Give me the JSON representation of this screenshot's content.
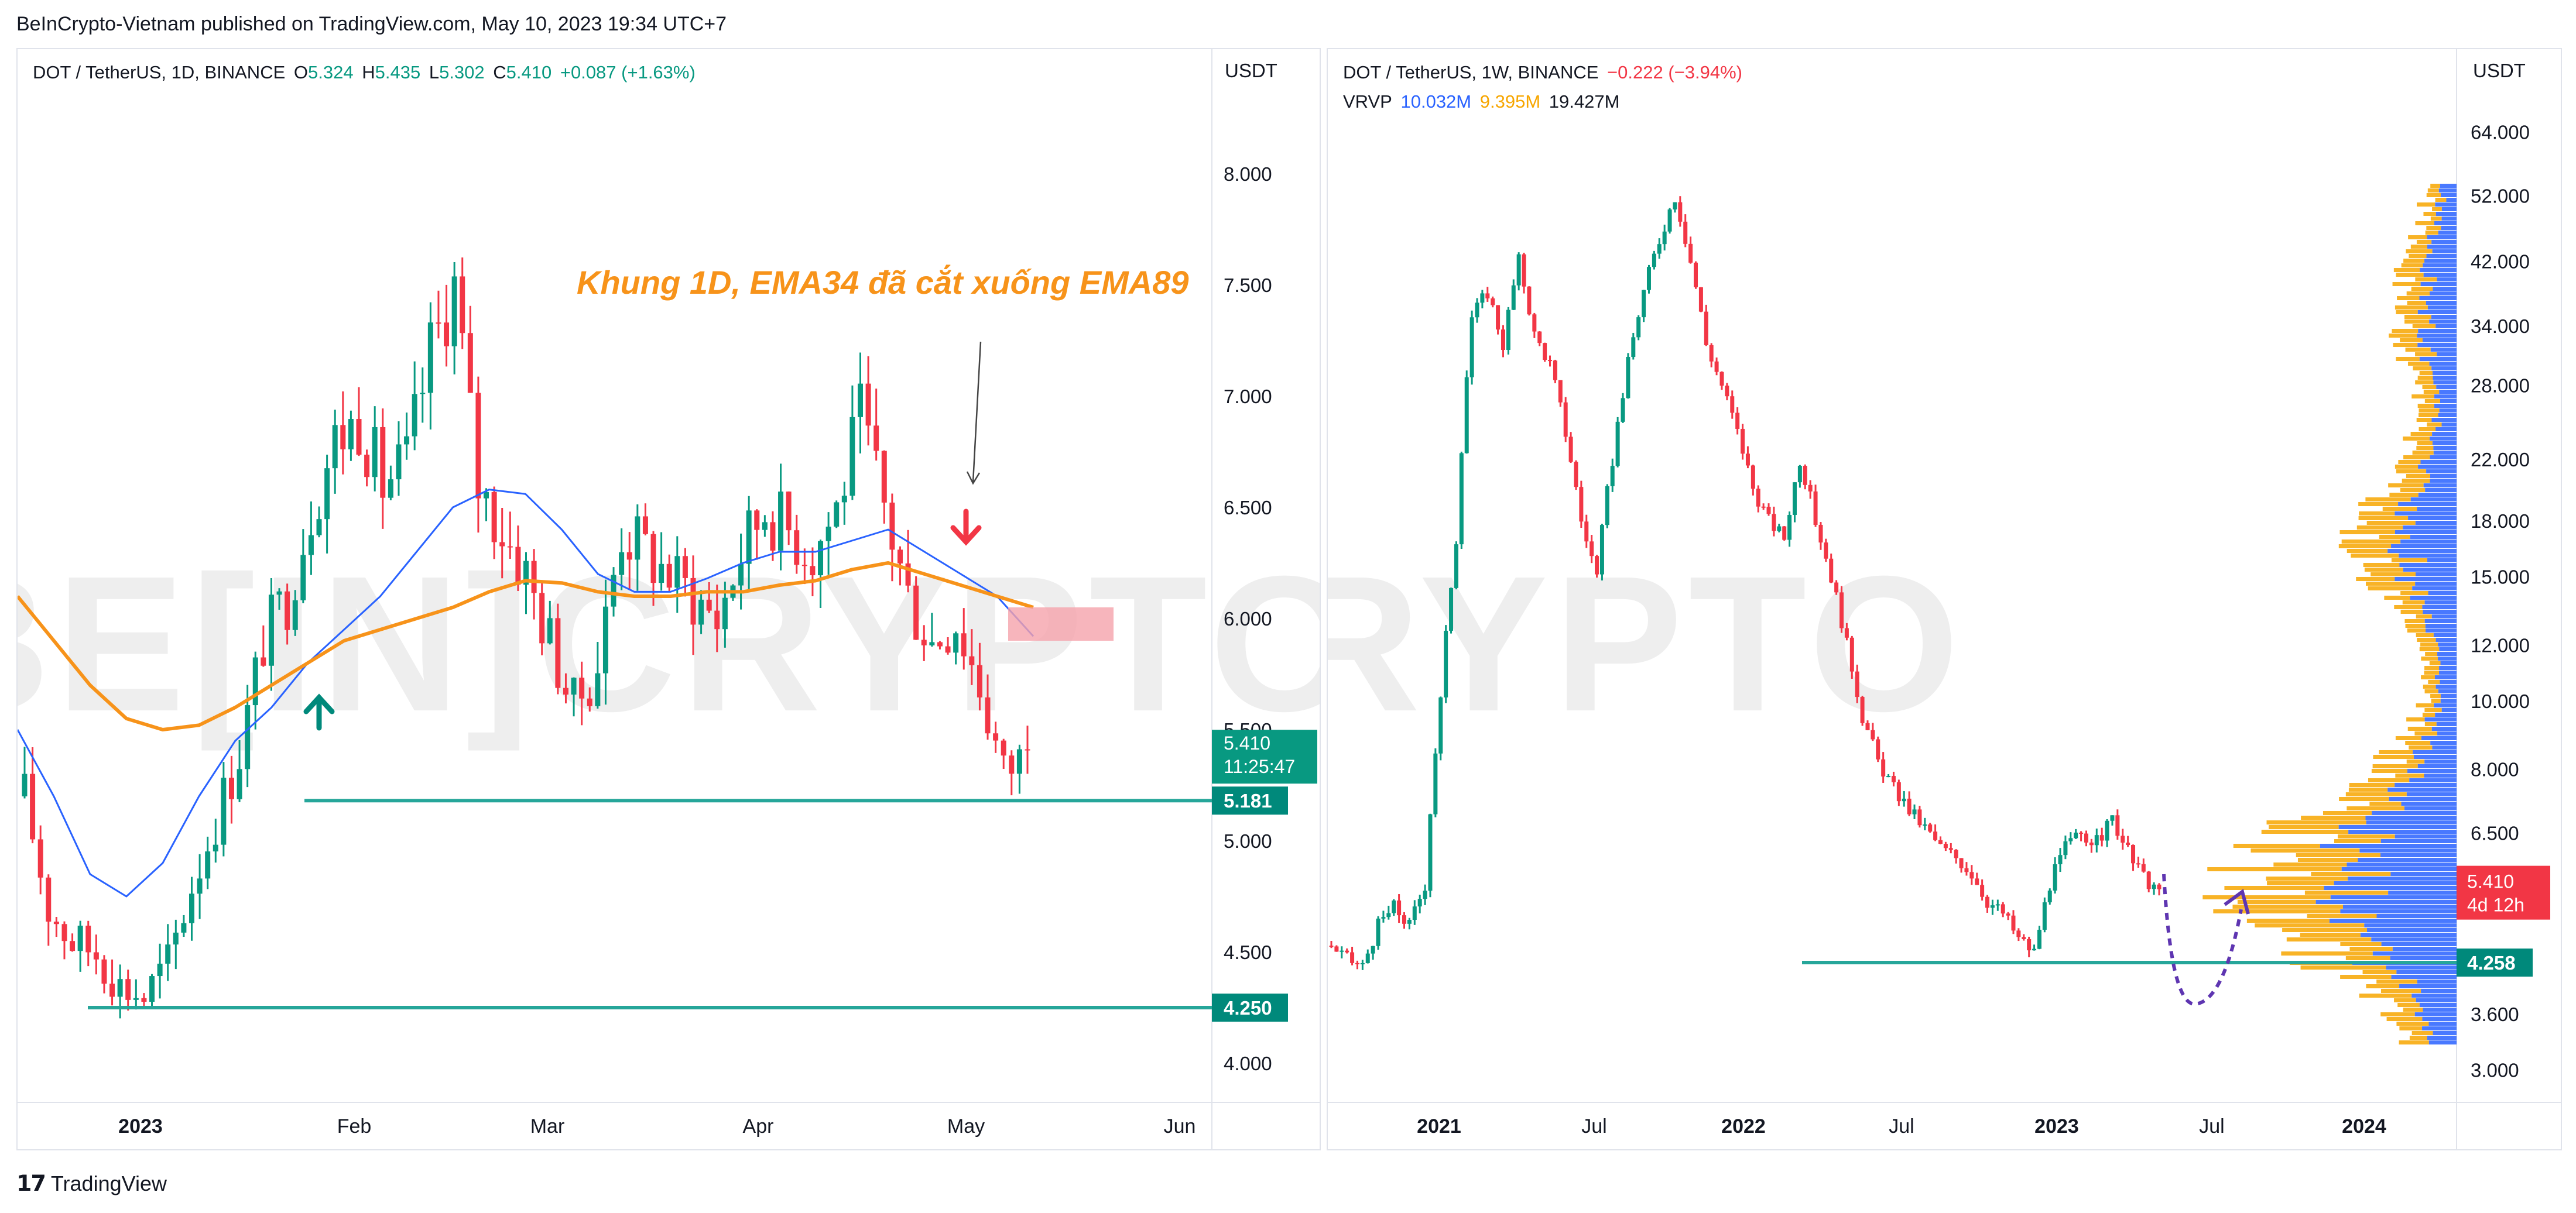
{
  "header": {
    "published_by": "BeInCrypto-Vietnam published on TradingView.com, May 10, 2023 19:34 UTC+7"
  },
  "footer": {
    "brand": "TradingView"
  },
  "watermark": "BE[IN]CRYPTO",
  "colors": {
    "up": "#089981",
    "down": "#f23645",
    "ema34": "#2962ff",
    "ema89": "#f7931a",
    "support": "#26a69a",
    "annotation": "#f7931a",
    "vrvp_up": "#2962ff",
    "vrvp_down": "#f7a600"
  },
  "left_panel": {
    "legend": {
      "symbol": "DOT / TetherUS, 1D, BINANCE",
      "o_label": "O",
      "o": "5.324",
      "h_label": "H",
      "h": "5.435",
      "l_label": "L",
      "l": "5.302",
      "c_label": "C",
      "c": "5.410",
      "change": "+0.087 (+1.63%)"
    },
    "unit": "USDT",
    "annotation": "Khung 1D, EMA34 đã cắt xuống EMA89",
    "price_tag": {
      "price": "5.410",
      "countdown": "11:25:47"
    },
    "support_tags": [
      "5.181",
      "4.250"
    ]
  },
  "right_panel": {
    "legend": {
      "symbol": "DOT / TetherUS, 1W, BINANCE",
      "change": "−0.222 (−3.94%)",
      "vrvp_label": "VRVP",
      "vrvp_up": "10.032M",
      "vrvp_down": "9.395M",
      "vrvp_total": "19.427M"
    },
    "unit": "USDT",
    "price_tag": {
      "price": "5.410",
      "countdown": "4d 12h"
    },
    "support_tag": "4.258"
  },
  "chart_data": [
    {
      "type": "candlestick",
      "title": "DOT / TetherUS, 1D, BINANCE",
      "y_ticks": [
        8.0,
        7.5,
        7.0,
        6.5,
        6.0,
        5.5,
        5.0,
        4.5,
        4.0
      ],
      "y_tick_labels": [
        "8.000",
        "7.500",
        "7.000",
        "6.500",
        "6.000",
        "5.500",
        "5.000",
        "4.500",
        "4.000"
      ],
      "x_tick_labels": [
        "2023",
        "Feb",
        "Mar",
        "Apr",
        "May",
        "Jun"
      ],
      "ylim": [
        3.8,
        8.3
      ],
      "series": [
        {
          "name": "EMA34",
          "values": [
            5.5,
            5.2,
            4.85,
            4.75,
            4.9,
            5.2,
            5.45,
            5.6,
            5.8,
            5.95,
            6.1,
            6.3,
            6.5,
            6.58,
            6.56,
            6.4,
            6.2,
            6.12,
            6.12,
            6.18,
            6.25,
            6.3,
            6.3,
            6.35,
            6.4,
            6.3,
            6.2,
            6.1,
            5.92
          ]
        },
        {
          "name": "EMA89",
          "values": [
            6.1,
            5.9,
            5.7,
            5.55,
            5.5,
            5.52,
            5.6,
            5.7,
            5.8,
            5.9,
            5.95,
            6.0,
            6.05,
            6.12,
            6.17,
            6.16,
            6.12,
            6.1,
            6.1,
            6.12,
            6.12,
            6.15,
            6.17,
            6.22,
            6.25,
            6.2,
            6.15,
            6.1,
            6.05
          ]
        }
      ],
      "candles_approx_close": [
        5.2,
        4.7,
        4.55,
        4.5,
        4.35,
        4.3,
        4.45,
        4.8,
        5.1,
        5.4,
        5.9,
        6.1,
        6.5,
        6.8,
        6.9,
        6.6,
        6.7,
        7.2,
        7.5,
        6.6,
        6.4,
        6.2,
        5.9,
        5.6,
        5.8,
        6.4,
        6.3,
        6.2,
        6.1,
        6.0,
        6.3,
        6.5,
        6.4,
        6.3,
        6.5,
        6.9,
        6.5,
        6.1,
        5.9,
        6.0,
        5.7,
        5.3,
        5.41
      ],
      "horizontal_lines": [
        5.181,
        4.25
      ],
      "annotations": [
        "Khung 1D, EMA34 đã cắt xuống EMA89"
      ],
      "last_price": 5.41
    },
    {
      "type": "candlestick",
      "title": "DOT / TetherUS, 1W, BINANCE",
      "y_scale": "log",
      "y_ticks": [
        64,
        52,
        42,
        34,
        28,
        22,
        18,
        15,
        12,
        10,
        8,
        6.5,
        5.41,
        4.258,
        3.6,
        3.0
      ],
      "y_tick_labels": [
        "64.000",
        "52.000",
        "42.000",
        "34.000",
        "28.000",
        "22.000",
        "18.000",
        "15.000",
        "12.000",
        "10.000",
        "8.000",
        "6.500",
        "",
        "",
        "3.600",
        "3.000"
      ],
      "x_tick_labels": [
        "2021",
        "Jul",
        "2022",
        "Jul",
        "2023",
        "Jul",
        "2024"
      ],
      "ylim": [
        2.8,
        70
      ],
      "candles_approx_close": [
        4.5,
        4.3,
        4.2,
        4.8,
        5.1,
        4.8,
        5.5,
        10,
        17,
        35,
        38,
        32,
        42,
        33,
        30,
        24,
        18,
        15,
        22,
        30,
        38,
        45,
        52,
        42,
        32,
        28,
        24,
        20,
        18,
        17,
        22,
        18,
        15,
        12,
        9.5,
        8.2,
        7.5,
        7.0,
        6.6,
        6.2,
        6.0,
        5.7,
        5.2,
        5.0,
        4.6,
        4.4,
        5.5,
        6.2,
        6.5,
        6.3,
        6.8,
        6.1,
        5.6,
        5.41
      ],
      "horizontal_lines": [
        4.258
      ],
      "vrvp": {
        "up_volume": "10.032M",
        "down_volume": "9.395M",
        "total": "19.427M"
      },
      "last_price": 5.41
    }
  ]
}
